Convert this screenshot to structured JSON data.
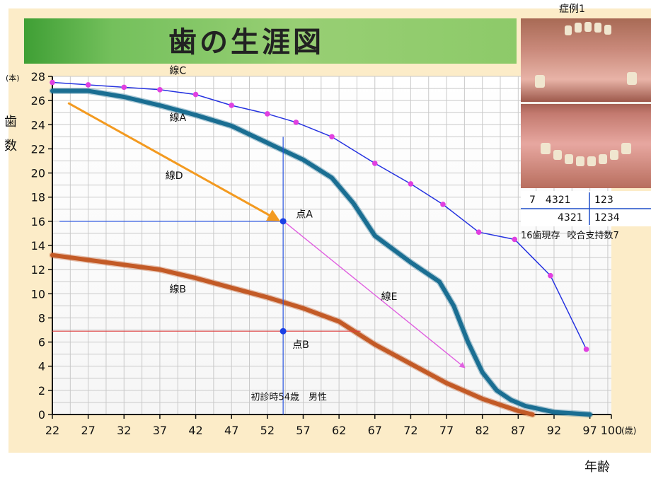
{
  "title": "歯の生涯図",
  "chart_data": {
    "type": "line",
    "title": "歯の生涯図",
    "xlabel": "年齢",
    "ylabel": "歯数",
    "y_unit": "(本)",
    "x_unit": "(歳)",
    "xlim": [
      22,
      100
    ],
    "ylim": [
      0,
      28
    ],
    "x_ticks": [
      22,
      27,
      32,
      37,
      42,
      47,
      52,
      57,
      62,
      67,
      72,
      77,
      82,
      87,
      92,
      97,
      100
    ],
    "y_ticks": [
      0,
      2,
      4,
      6,
      8,
      10,
      12,
      14,
      16,
      18,
      20,
      22,
      24,
      26,
      28
    ],
    "grid": true,
    "series": [
      {
        "name": "線C",
        "style": "markers",
        "color": "#2633e0",
        "marker_color": "#e040e0",
        "x": [
          22,
          27,
          32,
          37,
          42,
          47,
          52,
          56,
          61,
          67,
          72,
          76.5,
          81.5,
          86.5,
          91.5,
          96.5
        ],
        "y": [
          27.5,
          27.3,
          27.1,
          26.9,
          26.5,
          25.6,
          24.9,
          24.2,
          23.0,
          20.8,
          19.1,
          17.4,
          15.1,
          14.5,
          11.5,
          5.4
        ]
      },
      {
        "name": "線A",
        "style": "thick",
        "color": "#1a6e92",
        "x": [
          22,
          27,
          32,
          37,
          42,
          47,
          52,
          57,
          61,
          64,
          67,
          72,
          76,
          78,
          80,
          82,
          84,
          86,
          88,
          92,
          97
        ],
        "y": [
          26.8,
          26.8,
          26.3,
          25.6,
          24.8,
          23.9,
          22.5,
          21.1,
          19.6,
          17.5,
          14.8,
          12.6,
          11.0,
          9.0,
          6.0,
          3.5,
          2.0,
          1.2,
          0.7,
          0.2,
          0
        ]
      },
      {
        "name": "線B",
        "style": "thick",
        "color": "#c35a26",
        "x": [
          22,
          27,
          32,
          37,
          42,
          47,
          52,
          57,
          62,
          67,
          72,
          77,
          82,
          87,
          89
        ],
        "y": [
          13.2,
          12.8,
          12.4,
          12.0,
          11.3,
          10.5,
          9.7,
          8.8,
          7.7,
          5.8,
          4.2,
          2.6,
          1.3,
          0.3,
          0
        ]
      }
    ],
    "annotations": [
      {
        "name": "線D",
        "type": "arrow",
        "color": "#f39a20",
        "from": [
          24.2,
          25.8
        ],
        "to": [
          53.5,
          16.1
        ],
        "label_at": [
          39,
          19.5
        ]
      },
      {
        "name": "線E",
        "type": "arrow",
        "color": "#e060e0",
        "from": [
          54.5,
          15.9
        ],
        "to": [
          79.5,
          3.9
        ],
        "label_at": [
          69,
          9.5
        ]
      },
      {
        "name": "点A",
        "type": "point",
        "color": "#1a40e6",
        "at": [
          54.2,
          16
        ],
        "label_at": [
          56,
          16.3
        ]
      },
      {
        "name": "点B",
        "type": "point",
        "color": "#1a40e6",
        "at": [
          54.2,
          6.9
        ],
        "label_at": [
          55.5,
          5.5
        ]
      },
      {
        "name": "",
        "type": "hline",
        "color": "#2a55e0",
        "y": 16,
        "from_x": 23,
        "to_x": 54.2
      },
      {
        "name": "",
        "type": "hline",
        "color": "#e04040",
        "y": 6.9,
        "from_x": 22,
        "to_x": 65
      },
      {
        "name": "",
        "type": "vline",
        "color": "#2a55e0",
        "x": 54.2,
        "from_y": 23,
        "to_y": 0
      },
      {
        "name": "初診時54歳　男性",
        "type": "text",
        "at": [
          55,
          1.2
        ]
      },
      {
        "name": "線C",
        "type": "label",
        "at": [
          39.5,
          28.2
        ]
      },
      {
        "name": "線A",
        "type": "label",
        "at": [
          39.5,
          24.3
        ]
      },
      {
        "name": "線B",
        "type": "label",
        "at": [
          39.5,
          10.1
        ]
      }
    ]
  },
  "case": {
    "label": "症例1",
    "tooth_chart": {
      "upper_right": "7　4321",
      "upper_left": "123",
      "lower_right": "4321",
      "lower_left": "1234"
    },
    "summary_present": "16歯現存",
    "summary_support": "咬合支持数7"
  },
  "colors": {
    "panel": "#fcecc8",
    "grid": "#c8c8c8"
  }
}
